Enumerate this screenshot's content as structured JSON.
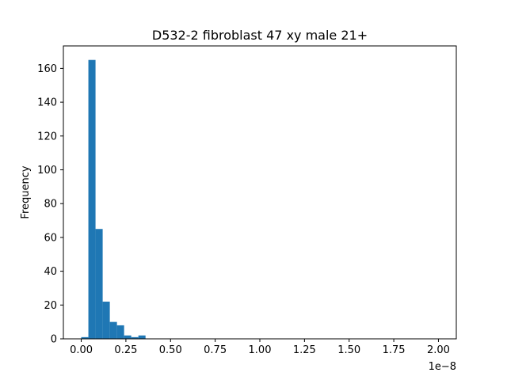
{
  "chart_data": {
    "type": "bar",
    "title": "D532-2 fibroblast 47 xy male 21+",
    "xlabel": "",
    "ylabel": "Frequency",
    "x_offset_label": "1e−8",
    "xlim": [
      -0.1,
      2.1
    ],
    "ylim": [
      0,
      173.3
    ],
    "x_ticks": [
      0.0,
      0.25,
      0.5,
      0.75,
      1.0,
      1.25,
      1.5,
      1.75,
      2.0
    ],
    "x_tick_labels": [
      "0.00",
      "0.25",
      "0.50",
      "0.75",
      "1.00",
      "1.25",
      "1.50",
      "1.75",
      "2.00"
    ],
    "y_ticks": [
      0,
      20,
      40,
      60,
      80,
      100,
      120,
      140,
      160
    ],
    "y_tick_labels": [
      "0",
      "20",
      "40",
      "60",
      "80",
      "100",
      "120",
      "140",
      "160"
    ],
    "bar_color": "#1f77b4",
    "bin_width": 0.04,
    "bins": [
      {
        "x": 0.0,
        "count": 0
      },
      {
        "x": 0.02,
        "count": 1
      },
      {
        "x": 0.06,
        "count": 165
      },
      {
        "x": 0.1,
        "count": 65
      },
      {
        "x": 0.14,
        "count": 22
      },
      {
        "x": 0.18,
        "count": 10
      },
      {
        "x": 0.22,
        "count": 8
      },
      {
        "x": 0.26,
        "count": 2
      },
      {
        "x": 0.3,
        "count": 1
      },
      {
        "x": 0.34,
        "count": 2
      }
    ]
  }
}
